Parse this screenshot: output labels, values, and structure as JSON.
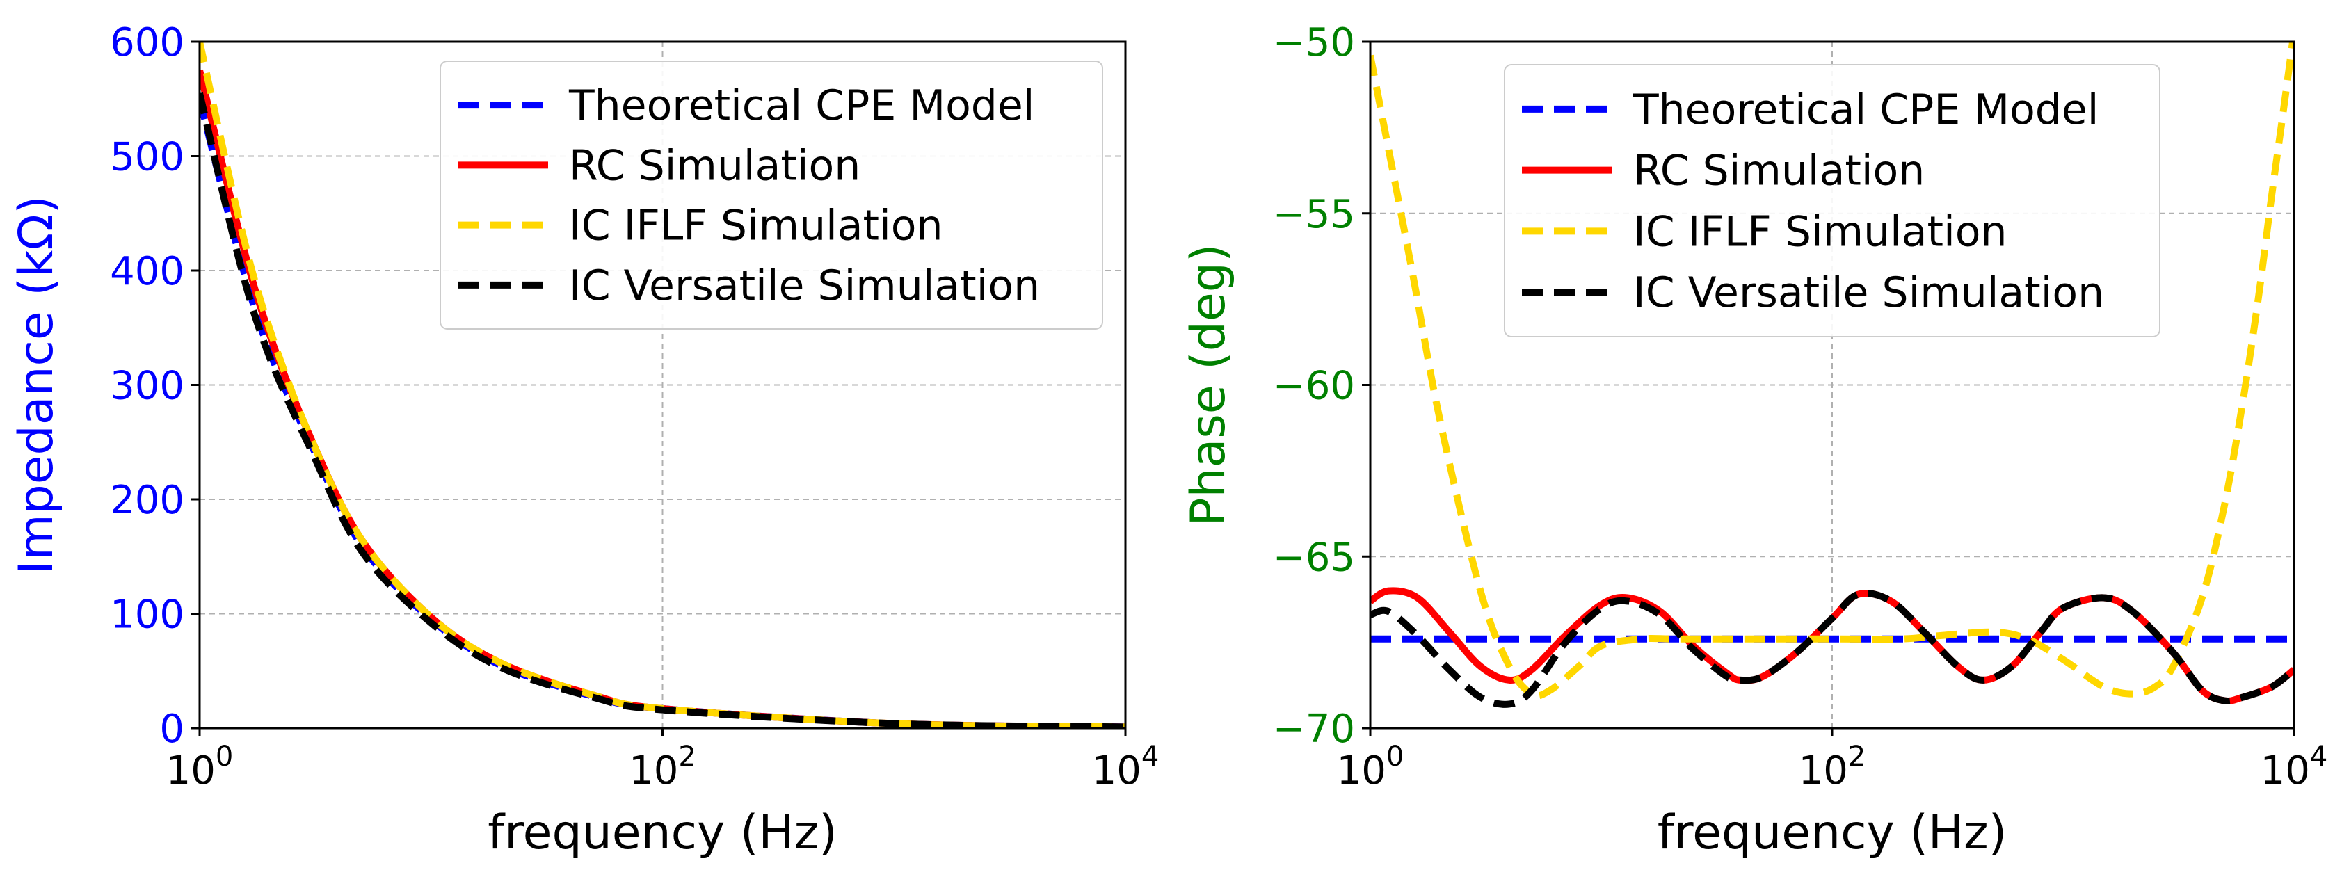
{
  "chart_data": [
    {
      "type": "line",
      "xscale": "log",
      "xlabel": "frequency (Hz)",
      "ylabel": "Impedance (kΩ)",
      "ylabel_color": "#0000ff",
      "ytick_color": "#0000ff",
      "xlim": [
        1,
        10000
      ],
      "ylim": [
        0,
        600
      ],
      "xticks": [
        {
          "value": 1,
          "base": "10",
          "exp": "0"
        },
        {
          "value": 100,
          "base": "10",
          "exp": "2"
        },
        {
          "value": 10000,
          "base": "10",
          "exp": "4"
        }
      ],
      "yticks": [
        0,
        100,
        200,
        300,
        400,
        500,
        600
      ],
      "grid": true,
      "legend": "top-right",
      "series": [
        {
          "name": "Theoretical CPE Model",
          "color": "#0000ff",
          "style": "dashed",
          "x": [
            1,
            1.5,
            2,
            3,
            5,
            10,
            20,
            50,
            100,
            1000,
            10000
          ],
          "y": [
            550,
            410,
            330,
            250,
            160,
            95,
            55,
            28,
            17,
            4,
            1
          ]
        },
        {
          "name": "RC Simulation",
          "color": "#ff0000",
          "style": "solid",
          "x": [
            1,
            1.5,
            2,
            3,
            5,
            10,
            20,
            50,
            100,
            1000,
            10000
          ],
          "y": [
            575,
            430,
            345,
            255,
            165,
            97,
            57,
            29,
            17,
            4,
            1
          ]
        },
        {
          "name": "IC IFLF Simulation",
          "color": "#ffd700",
          "style": "dashed",
          "x": [
            1,
            1.5,
            2,
            3,
            5,
            10,
            20,
            50,
            100,
            1000,
            10000
          ],
          "y": [
            600,
            440,
            350,
            255,
            165,
            97,
            57,
            29,
            17,
            4,
            1
          ]
        },
        {
          "name": "IC Versatile Simulation",
          "color": "#000000",
          "style": "dashed",
          "x": [
            1,
            1.5,
            2,
            3,
            5,
            10,
            20,
            50,
            100,
            1000,
            10000
          ],
          "y": [
            555,
            405,
            325,
            245,
            155,
            92,
            53,
            27,
            16,
            4,
            1
          ]
        }
      ]
    },
    {
      "type": "line",
      "xscale": "log",
      "xlabel": "frequency (Hz)",
      "ylabel": "Phase (deg)",
      "ylabel_color": "#008000",
      "ytick_color": "#008000",
      "xlim": [
        1,
        10000
      ],
      "ylim": [
        -70,
        -50
      ],
      "xticks": [
        {
          "value": 1,
          "base": "10",
          "exp": "0"
        },
        {
          "value": 100,
          "base": "10",
          "exp": "2"
        },
        {
          "value": 10000,
          "base": "10",
          "exp": "4"
        }
      ],
      "yticks": [
        -70,
        -65,
        -60,
        -55,
        -50
      ],
      "ytick_labels": [
        "−70",
        "−65",
        "−60",
        "−55",
        "−50"
      ],
      "grid": true,
      "legend": "top-center",
      "series": [
        {
          "name": "Theoretical CPE Model",
          "color": "#0000ff",
          "style": "dashed",
          "x": [
            1,
            10000
          ],
          "y": [
            -67.4,
            -67.4
          ]
        },
        {
          "name": "RC Simulation",
          "color": "#ff0000",
          "style": "solid",
          "x": [
            1,
            1.2,
            1.6,
            2.2,
            3,
            4,
            5,
            7,
            10,
            13,
            18,
            25,
            35,
            40,
            50,
            70,
            100,
            130,
            180,
            250,
            350,
            450,
            600,
            800,
            1000,
            1500,
            2000,
            3000,
            4000,
            5000,
            6000,
            8000,
            10000
          ],
          "y": [
            -66.3,
            -66.0,
            -66.2,
            -67.2,
            -68.2,
            -68.6,
            -68.3,
            -67.3,
            -66.4,
            -66.2,
            -66.6,
            -67.6,
            -68.4,
            -68.6,
            -68.5,
            -67.8,
            -66.8,
            -66.1,
            -66.3,
            -67.2,
            -68.2,
            -68.6,
            -68.2,
            -67.2,
            -66.5,
            -66.2,
            -66.6,
            -67.8,
            -68.9,
            -69.2,
            -69.1,
            -68.8,
            -68.3
          ]
        },
        {
          "name": "IC IFLF Simulation",
          "color": "#ffd700",
          "style": "dashed",
          "x": [
            1,
            1.5,
            2,
            3,
            4,
            5,
            6,
            8,
            10,
            15,
            20,
            30,
            50,
            100,
            200,
            300,
            500,
            700,
            1000,
            1500,
            2000,
            2500,
            3000,
            4000,
            5000,
            6000,
            7000,
            8000,
            9000,
            10000
          ],
          "y": [
            -50.4,
            -56.5,
            -61.0,
            -66.0,
            -68.2,
            -69.0,
            -68.9,
            -68.2,
            -67.6,
            -67.4,
            -67.4,
            -67.4,
            -67.4,
            -67.4,
            -67.4,
            -67.3,
            -67.2,
            -67.4,
            -68.0,
            -68.8,
            -69.0,
            -68.8,
            -68.2,
            -66.2,
            -63.5,
            -60.5,
            -57.5,
            -54.5,
            -52.0,
            -49.7
          ]
        },
        {
          "name": "IC Versatile Simulation",
          "color": "#000000",
          "style": "dashed",
          "x": [
            1,
            1.2,
            1.6,
            2.2,
            3,
            4,
            5,
            7,
            10,
            13,
            18,
            25,
            35,
            40,
            50,
            70,
            100,
            130,
            180,
            250,
            350,
            450,
            600,
            800,
            1000,
            1500,
            2000,
            3000,
            4000,
            5000,
            6000,
            8000,
            10000
          ],
          "y": [
            -66.7,
            -66.6,
            -67.3,
            -68.3,
            -69.1,
            -69.3,
            -68.9,
            -67.5,
            -66.5,
            -66.3,
            -66.7,
            -67.7,
            -68.5,
            -68.6,
            -68.5,
            -67.8,
            -66.8,
            -66.1,
            -66.3,
            -67.2,
            -68.2,
            -68.6,
            -68.2,
            -67.2,
            -66.5,
            -66.2,
            -66.6,
            -67.8,
            -68.9,
            -69.2,
            -69.1,
            -68.8,
            -68.3
          ]
        }
      ]
    }
  ]
}
